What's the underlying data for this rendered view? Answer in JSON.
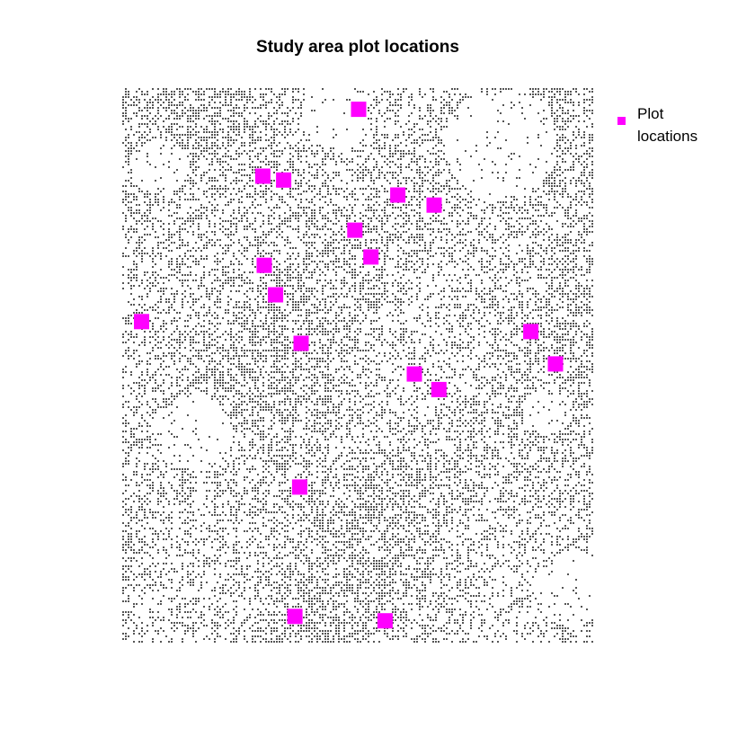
{
  "chart_data": {
    "type": "scatter",
    "title": "Study area plot locations",
    "xlabel": "",
    "ylabel": "",
    "xlim": [
      0,
      1
    ],
    "ylim": [
      0,
      1
    ],
    "grid": false,
    "axes_visible": false,
    "background": "raster canopy pixels (grey speckle) over white",
    "legend": {
      "placement": "right",
      "entries": [
        {
          "label_lines": [
            "Plot",
            "locations"
          ],
          "color": "#ff00ff",
          "marker": "square"
        }
      ]
    },
    "series": [
      {
        "name": "Plot locations",
        "color": "#ff00ff",
        "marker": "square",
        "points": [
          {
            "x": 0.501,
            "y": 0.962
          },
          {
            "x": 0.298,
            "y": 0.842
          },
          {
            "x": 0.342,
            "y": 0.835
          },
          {
            "x": 0.584,
            "y": 0.808
          },
          {
            "x": 0.661,
            "y": 0.79
          },
          {
            "x": 0.493,
            "y": 0.745
          },
          {
            "x": 0.527,
            "y": 0.697
          },
          {
            "x": 0.301,
            "y": 0.682
          },
          {
            "x": 0.325,
            "y": 0.629
          },
          {
            "x": 0.041,
            "y": 0.581
          },
          {
            "x": 0.866,
            "y": 0.563
          },
          {
            "x": 0.379,
            "y": 0.542
          },
          {
            "x": 0.918,
            "y": 0.505
          },
          {
            "x": 0.619,
            "y": 0.487
          },
          {
            "x": 0.671,
            "y": 0.459
          },
          {
            "x": 0.376,
            "y": 0.284
          },
          {
            "x": 0.366,
            "y": 0.052
          },
          {
            "x": 0.557,
            "y": 0.044
          }
        ]
      }
    ]
  },
  "colors": {
    "canopy": "#555555",
    "marker": "#ff00ff"
  }
}
